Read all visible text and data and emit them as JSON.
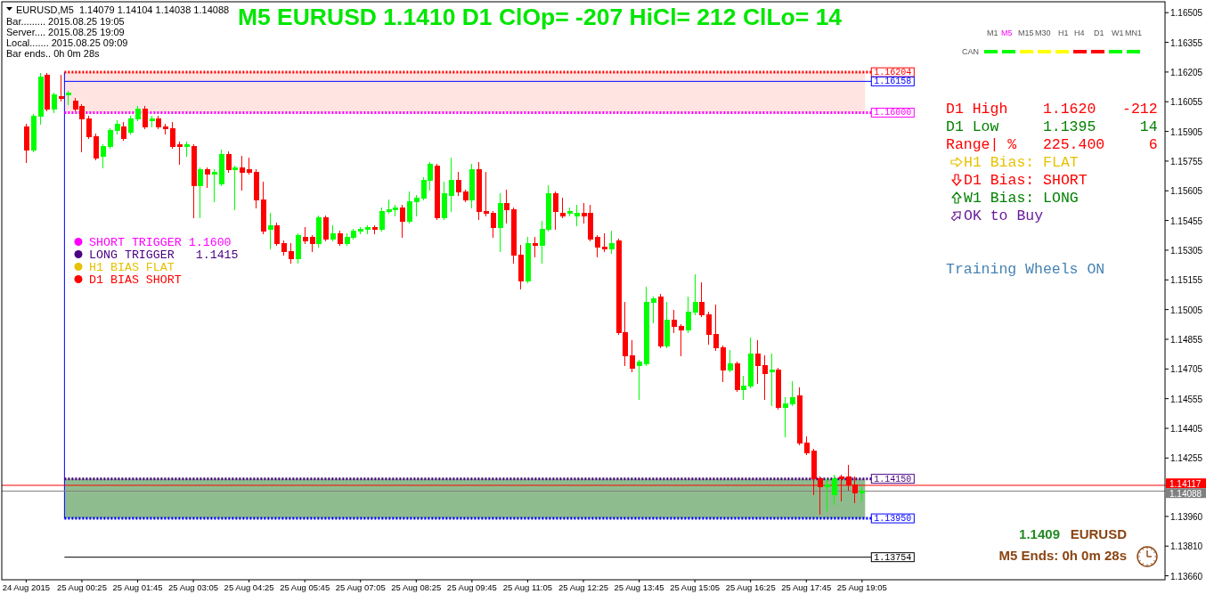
{
  "chart_data": {
    "type": "candlestick",
    "title": "M5 EURUSD 1.1410 D1 ClOp= -207 HiCl= 212 ClLo= 14",
    "x": [
      "2015-08-24T23:05",
      "2015-08-24T23:15",
      "2015-08-24T23:25",
      "2015-08-24T23:35",
      "2015-08-24T23:45",
      "2015-08-24T23:55",
      "2015-08-25T00:05",
      "2015-08-25T00:15",
      "2015-08-25T00:25",
      "2015-08-25T00:35",
      "2015-08-25T00:45",
      "2015-08-25T00:55",
      "2015-08-25T01:05",
      "2015-08-25T01:15",
      "2015-08-25T01:25",
      "2015-08-25T01:35",
      "2015-08-25T01:45",
      "2015-08-25T01:55",
      "2015-08-25T02:05",
      "2015-08-25T02:15",
      "2015-08-25T02:25",
      "2015-08-25T02:35",
      "2015-08-25T02:45",
      "2015-08-25T02:55",
      "2015-08-25T03:05",
      "2015-08-25T03:15",
      "2015-08-25T03:25",
      "2015-08-25T03:35",
      "2015-08-25T03:45",
      "2015-08-25T03:55",
      "2015-08-25T04:05",
      "2015-08-25T04:15",
      "2015-08-25T04:25",
      "2015-08-25T04:35",
      "2015-08-25T04:45",
      "2015-08-25T04:55",
      "2015-08-25T05:05",
      "2015-08-25T05:15",
      "2015-08-25T05:25",
      "2015-08-25T05:35",
      "2015-08-25T05:45",
      "2015-08-25T05:55",
      "2015-08-25T06:05",
      "2015-08-25T06:15",
      "2015-08-25T06:25",
      "2015-08-25T06:35",
      "2015-08-25T06:45",
      "2015-08-25T06:55",
      "2015-08-25T07:05",
      "2015-08-25T07:15",
      "2015-08-25T07:25",
      "2015-08-25T07:35",
      "2015-08-25T07:45",
      "2015-08-25T07:55",
      "2015-08-25T08:05",
      "2015-08-25T08:15",
      "2015-08-25T08:25",
      "2015-08-25T08:35",
      "2015-08-25T08:45",
      "2015-08-25T08:55",
      "2015-08-25T09:05",
      "2015-08-25T09:15",
      "2015-08-25T09:25",
      "2015-08-25T09:35",
      "2015-08-25T09:45",
      "2015-08-25T09:55",
      "2015-08-25T10:05",
      "2015-08-25T10:15",
      "2015-08-25T10:25",
      "2015-08-25T10:35",
      "2015-08-25T10:45",
      "2015-08-25T10:55",
      "2015-08-25T11:05",
      "2015-08-25T11:15",
      "2015-08-25T11:25",
      "2015-08-25T11:35",
      "2015-08-25T11:45",
      "2015-08-25T11:55",
      "2015-08-25T12:05",
      "2015-08-25T12:15",
      "2015-08-25T12:25",
      "2015-08-25T12:35",
      "2015-08-25T12:45",
      "2015-08-25T12:55",
      "2015-08-25T13:05",
      "2015-08-25T13:15",
      "2015-08-25T13:25",
      "2015-08-25T13:35",
      "2015-08-25T13:45",
      "2015-08-25T13:55",
      "2015-08-25T14:05",
      "2015-08-25T14:15",
      "2015-08-25T14:25",
      "2015-08-25T14:35",
      "2015-08-25T14:45",
      "2015-08-25T14:55",
      "2015-08-25T15:05",
      "2015-08-25T15:15",
      "2015-08-25T15:25",
      "2015-08-25T15:35",
      "2015-08-25T15:45",
      "2015-08-25T15:55",
      "2015-08-25T16:05",
      "2015-08-25T16:15",
      "2015-08-25T16:25",
      "2015-08-25T16:35",
      "2015-08-25T16:45",
      "2015-08-25T16:55",
      "2015-08-25T17:05",
      "2015-08-25T17:15",
      "2015-08-25T17:25",
      "2015-08-25T17:35",
      "2015-08-25T17:45",
      "2015-08-25T17:55",
      "2015-08-25T18:05",
      "2015-08-25T18:15",
      "2015-08-25T18:25",
      "2015-08-25T18:35",
      "2015-08-25T18:45",
      "2015-08-25T18:55",
      "2015-08-25T19:05"
    ],
    "ohlc": [
      [
        1.1593,
        1.1594,
        1.1575,
        1.1581
      ],
      [
        1.1581,
        1.1599,
        1.158,
        1.1598
      ],
      [
        1.1598,
        1.162,
        1.1594,
        1.1618
      ],
      [
        1.1619,
        1.162,
        1.1601,
        1.1602
      ],
      [
        1.1602,
        1.161,
        1.16,
        1.1609
      ],
      [
        1.1608,
        1.1619,
        1.1606,
        1.1607
      ],
      [
        1.1609,
        1.1611,
        1.1604,
        1.161
      ],
      [
        1.1606,
        1.1607,
        1.1601,
        1.1602
      ],
      [
        1.1603,
        1.1604,
        1.158,
        1.1597
      ],
      [
        1.1597,
        1.1598,
        1.1587,
        1.1588
      ],
      [
        1.1588,
        1.1589,
        1.1576,
        1.1577
      ],
      [
        1.1578,
        1.1584,
        1.1572,
        1.1583
      ],
      [
        1.1583,
        1.1592,
        1.1582,
        1.1591
      ],
      [
        1.1591,
        1.1596,
        1.1589,
        1.1594
      ],
      [
        1.1593,
        1.1595,
        1.1586,
        1.1587
      ],
      [
        1.159,
        1.1598,
        1.1589,
        1.1597
      ],
      [
        1.1597,
        1.1603,
        1.1596,
        1.1602
      ],
      [
        1.1602,
        1.1603,
        1.1592,
        1.1593
      ],
      [
        1.1596,
        1.1598,
        1.1593,
        1.1597
      ],
      [
        1.1597,
        1.1598,
        1.1592,
        1.1593
      ],
      [
        1.1593,
        1.1594,
        1.1589,
        1.1592
      ],
      [
        1.1592,
        1.1595,
        1.1582,
        1.1583
      ],
      [
        1.1584,
        1.1585,
        1.1574,
        1.1583
      ],
      [
        1.1583,
        1.1585,
        1.1578,
        1.1584
      ],
      [
        1.1583,
        1.1584,
        1.1547,
        1.1563
      ],
      [
        1.1563,
        1.1572,
        1.1547,
        1.1571
      ],
      [
        1.1571,
        1.1572,
        1.1562,
        1.1569
      ],
      [
        1.1569,
        1.1571,
        1.1555,
        1.157
      ],
      [
        1.1564,
        1.1581,
        1.1563,
        1.1579
      ],
      [
        1.1579,
        1.158,
        1.157,
        1.1571
      ],
      [
        1.1571,
        1.1573,
        1.1551,
        1.1572
      ],
      [
        1.1572,
        1.1578,
        1.1561,
        1.157
      ],
      [
        1.1571,
        1.1577,
        1.1569,
        1.157
      ],
      [
        1.157,
        1.1571,
        1.1552,
        1.1556
      ],
      [
        1.1556,
        1.1565,
        1.1539,
        1.154
      ],
      [
        1.1541,
        1.1549,
        1.1531,
        1.1543
      ],
      [
        1.1543,
        1.1544,
        1.1533,
        1.1534
      ],
      [
        1.1534,
        1.1535,
        1.1528,
        1.153
      ],
      [
        1.153,
        1.1534,
        1.1524,
        1.1526
      ],
      [
        1.1526,
        1.1539,
        1.1524,
        1.1538
      ],
      [
        1.1537,
        1.1542,
        1.1534,
        1.1535
      ],
      [
        1.1537,
        1.1538,
        1.153,
        1.1534
      ],
      [
        1.1534,
        1.1548,
        1.1532,
        1.1547
      ],
      [
        1.1547,
        1.1548,
        1.1535,
        1.1536
      ],
      [
        1.1536,
        1.1543,
        1.1535,
        1.1539
      ],
      [
        1.1539,
        1.154,
        1.1533,
        1.1534
      ],
      [
        1.1534,
        1.1539,
        1.1533,
        1.1537
      ],
      [
        1.1537,
        1.1541,
        1.1536,
        1.154
      ],
      [
        1.154,
        1.1542,
        1.1539,
        1.1541
      ],
      [
        1.1541,
        1.1543,
        1.1539,
        1.1542
      ],
      [
        1.1542,
        1.1543,
        1.1539,
        1.1541
      ],
      [
        1.1541,
        1.1552,
        1.154,
        1.155
      ],
      [
        1.155,
        1.1556,
        1.1549,
        1.1551
      ],
      [
        1.1551,
        1.1553,
        1.1548,
        1.1552
      ],
      [
        1.1552,
        1.1553,
        1.1537,
        1.1545
      ],
      [
        1.1545,
        1.156,
        1.1544,
        1.1555
      ],
      [
        1.1555,
        1.1558,
        1.1548,
        1.1557
      ],
      [
        1.1557,
        1.1567,
        1.1556,
        1.1566
      ],
      [
        1.1566,
        1.1575,
        1.1561,
        1.1574
      ],
      [
        1.1573,
        1.1574,
        1.1546,
        1.1547
      ],
      [
        1.1547,
        1.1565,
        1.1546,
        1.1559
      ],
      [
        1.1558,
        1.1577,
        1.155,
        1.1566
      ],
      [
        1.1566,
        1.157,
        1.1558,
        1.156
      ],
      [
        1.156,
        1.1561,
        1.1555,
        1.1556
      ],
      [
        1.1556,
        1.1574,
        1.1552,
        1.1571
      ],
      [
        1.1571,
        1.1575,
        1.1546,
        1.155
      ],
      [
        1.155,
        1.157,
        1.1548,
        1.1549
      ],
      [
        1.1549,
        1.155,
        1.1537,
        1.1542
      ],
      [
        1.1542,
        1.1559,
        1.153,
        1.1554
      ],
      [
        1.1554,
        1.1561,
        1.1544,
        1.1551
      ],
      [
        1.1551,
        1.1552,
        1.1524,
        1.1528
      ],
      [
        1.1528,
        1.1533,
        1.1511,
        1.1515
      ],
      [
        1.1515,
        1.1537,
        1.1514,
        1.1534
      ],
      [
        1.1534,
        1.1537,
        1.1527,
        1.1533
      ],
      [
        1.1533,
        1.1545,
        1.1524,
        1.1541
      ],
      [
        1.1541,
        1.1563,
        1.154,
        1.1559
      ],
      [
        1.1559,
        1.156,
        1.1541,
        1.155
      ],
      [
        1.1549,
        1.1557,
        1.1547,
        1.1548
      ],
      [
        1.1549,
        1.1552,
        1.1548,
        1.155
      ],
      [
        1.1548,
        1.1553,
        1.1543,
        1.1549
      ],
      [
        1.1549,
        1.1554,
        1.1544,
        1.1548
      ],
      [
        1.1549,
        1.1553,
        1.1535,
        1.1536
      ],
      [
        1.1537,
        1.1538,
        1.1527,
        1.1532
      ],
      [
        1.1532,
        1.1539,
        1.153,
        1.1531
      ],
      [
        1.1531,
        1.154,
        1.1529,
        1.1534
      ],
      [
        1.1535,
        1.1536,
        1.1488,
        1.1489
      ],
      [
        1.1489,
        1.1504,
        1.1472,
        1.1477
      ],
      [
        1.1477,
        1.1485,
        1.1469,
        1.1471
      ],
      [
        1.1472,
        1.1475,
        1.1455,
        1.1474
      ],
      [
        1.1473,
        1.1512,
        1.1472,
        1.1504
      ],
      [
        1.1504,
        1.1507,
        1.1494,
        1.1506
      ],
      [
        1.1507,
        1.1508,
        1.1481,
        1.1482
      ],
      [
        1.1482,
        1.1504,
        1.1481,
        1.1495
      ],
      [
        1.1495,
        1.15,
        1.1489,
        1.1492
      ],
      [
        1.1492,
        1.1493,
        1.1477,
        1.149
      ],
      [
        1.149,
        1.1507,
        1.1489,
        1.1499
      ],
      [
        1.1499,
        1.1518,
        1.1498,
        1.1504
      ],
      [
        1.1504,
        1.1514,
        1.1497,
        1.1498
      ],
      [
        1.1498,
        1.1499,
        1.1483,
        1.1488
      ],
      [
        1.1488,
        1.1503,
        1.148,
        1.1481
      ],
      [
        1.1481,
        1.1482,
        1.1464,
        1.147
      ],
      [
        1.147,
        1.148,
        1.1469,
        1.1473
      ],
      [
        1.1473,
        1.1474,
        1.1459,
        1.146
      ],
      [
        1.146,
        1.1467,
        1.1455,
        1.1462
      ],
      [
        1.1462,
        1.1486,
        1.1461,
        1.1478
      ],
      [
        1.1478,
        1.1485,
        1.1463,
        1.1472
      ],
      [
        1.1472,
        1.1477,
        1.1455,
        1.1468
      ],
      [
        1.1469,
        1.1478,
        1.1452,
        1.147
      ],
      [
        1.147,
        1.1471,
        1.145,
        1.1451
      ],
      [
        1.1451,
        1.1456,
        1.1436,
        1.1453
      ],
      [
        1.1453,
        1.1464,
        1.1452,
        1.1456
      ],
      [
        1.1457,
        1.1461,
        1.1432,
        1.1433
      ],
      [
        1.1433,
        1.1436,
        1.1427,
        1.1428
      ],
      [
        1.1429,
        1.143,
        1.1407,
        1.1415
      ],
      [
        1.1415,
        1.1416,
        1.1397,
        1.1411
      ],
      [
        1.1411,
        1.1415,
        1.1399,
        1.1412
      ],
      [
        1.1407,
        1.1417,
        1.1402,
        1.1415
      ],
      [
        1.1416,
        1.1417,
        1.1404,
        1.1415
      ],
      [
        1.1416,
        1.1422,
        1.1409,
        1.1412
      ],
      [
        1.1412,
        1.1416,
        1.1403,
        1.1408
      ],
      [
        1.14079,
        1.14104,
        1.14038,
        1.14088
      ]
    ],
    "colors": [
      "#ff0000",
      "#00ff00",
      "#00ff00",
      "#ff0000",
      "#00ff00",
      "#ff0000",
      "#00ff00",
      "#ff0000",
      "#ff0000",
      "#ff0000",
      "#ff0000",
      "#00ff00",
      "#00ff00",
      "#00ff00",
      "#ff0000",
      "#00ff00",
      "#00ff00",
      "#ff0000",
      "#00ff00",
      "#ff0000",
      "#ff0000",
      "#ff0000",
      "#ff0000",
      "#00ff00",
      "#ff0000",
      "#00ff00",
      "#ff0000",
      "#00ff00",
      "#00ff00",
      "#ff0000",
      "#00ff00",
      "#ff0000",
      "#ff0000",
      "#ff0000",
      "#ff0000",
      "#00ff00",
      "#ff0000",
      "#ff0000",
      "#ff0000",
      "#00ff00",
      "#ff0000",
      "#ff0000",
      "#00ff00",
      "#ff0000",
      "#00ff00",
      "#ff0000",
      "#00ff00",
      "#00ff00",
      "#00ff00",
      "#00ff00",
      "#ff0000",
      "#00ff00",
      "#00ff00",
      "#00ff00",
      "#ff0000",
      "#00ff00",
      "#00ff00",
      "#00ff00",
      "#00ff00",
      "#ff0000",
      "#00ff00",
      "#00ff00",
      "#ff0000",
      "#ff0000",
      "#00ff00",
      "#ff0000",
      "#ff0000",
      "#ff0000",
      "#00ff00",
      "#ff0000",
      "#ff0000",
      "#ff0000",
      "#00ff00",
      "#ff0000",
      "#00ff00",
      "#00ff00",
      "#ff0000",
      "#ff0000",
      "#00ff00",
      "#00ff00",
      "#ff0000",
      "#ff0000",
      "#ff0000",
      "#ff0000",
      "#00ff00",
      "#ff0000",
      "#ff0000",
      "#ff0000",
      "#00ff00",
      "#00ff00",
      "#00ff00",
      "#ff0000",
      "#00ff00",
      "#ff0000",
      "#ff0000",
      "#00ff00",
      "#00ff00",
      "#ff0000",
      "#ff0000",
      "#ff0000",
      "#ff0000",
      "#00ff00",
      "#ff0000",
      "#00ff00",
      "#00ff00",
      "#ff0000",
      "#ff0000",
      "#00ff00",
      "#ff0000",
      "#00ff00",
      "#00ff00",
      "#ff0000",
      "#ff0000",
      "#ff0000",
      "#ff0000",
      "#00ff00",
      "#00ff00",
      "#ff0000",
      "#ff0000",
      "#ff0000",
      "#00ff00"
    ],
    "xlim": [
      "2015-08-24T22:30",
      "2015-08-26T02:20"
    ],
    "xticks": [
      {
        "value": "2015-08-24T23:05",
        "label": "24 Aug 2015"
      },
      {
        "value": "2015-08-25T00:25",
        "label": "25 Aug 00:25"
      },
      {
        "value": "2015-08-25T01:45",
        "label": "25 Aug 01:45"
      },
      {
        "value": "2015-08-25T03:05",
        "label": "25 Aug 03:05"
      },
      {
        "value": "2015-08-25T04:25",
        "label": "25 Aug 04:25"
      },
      {
        "value": "2015-08-25T05:45",
        "label": "25 Aug 05:45"
      },
      {
        "value": "2015-08-25T07:05",
        "label": "25 Aug 07:05"
      },
      {
        "value": "2015-08-25T08:25",
        "label": "25 Aug 08:25"
      },
      {
        "value": "2015-08-25T09:45",
        "label": "25 Aug 09:45"
      },
      {
        "value": "2015-08-25T11:05",
        "label": "25 Aug 11:05"
      },
      {
        "value": "2015-08-25T12:25",
        "label": "25 Aug 12:25"
      },
      {
        "value": "2015-08-25T13:45",
        "label": "25 Aug 13:45"
      },
      {
        "value": "2015-08-25T15:05",
        "label": "25 Aug 15:05"
      },
      {
        "value": "2015-08-25T16:25",
        "label": "25 Aug 16:25"
      },
      {
        "value": "2015-08-25T17:45",
        "label": "25 Aug 17:45"
      },
      {
        "value": "2015-08-25T19:05",
        "label": "25 Aug 19:05"
      }
    ],
    "ylim": [
      1.1364,
      1.1656
    ],
    "yticks": [
      1.16505,
      1.16355,
      1.16205,
      1.16055,
      1.15905,
      1.15755,
      1.15605,
      1.15455,
      1.15305,
      1.15155,
      1.15005,
      1.14855,
      1.14705,
      1.14555,
      1.14405,
      1.14255,
      1.14117,
      1.14088,
      {
        "value": 1.1396,
        "label": "1.13960"
      },
      {
        "value": 1.1381,
        "label": "1.13810"
      },
      {
        "value": 1.1366,
        "label": "1.13660"
      }
    ],
    "ref_lines": [
      {
        "axis": "x",
        "value": "2015-08-25T00:00",
        "color": "#0000ff"
      },
      {
        "axis": "y",
        "value": 1.16204,
        "label": "1.16204",
        "color": "#ff0000",
        "line_style": "dotted"
      },
      {
        "axis": "y",
        "value": 1.16158,
        "label": "1.16158",
        "color": "#0000ff",
        "line_style": "solid"
      },
      {
        "axis": "y",
        "value": 1.16,
        "label": "1.16000",
        "color": "#ff00ff",
        "line_style": "dotted"
      },
      {
        "axis": "y",
        "value": 1.1415,
        "label": "1.14150",
        "color": "#4b0082",
        "line_style": "dotted"
      },
      {
        "axis": "y",
        "value": 1.1395,
        "label": "1.13950",
        "color": "#0000ff",
        "line_style": "dotted"
      },
      {
        "axis": "y",
        "value": 1.13754,
        "label": "1.13754",
        "color": "#000000",
        "line_style": "solid"
      },
      {
        "axis": "y",
        "value": 1.14117,
        "color": "#ff0000",
        "line_style": "solid"
      },
      {
        "axis": "y",
        "value": 1.14088,
        "color": "#808080",
        "line_style": "solid"
      }
    ],
    "bands": [
      {
        "axis": "y",
        "from": 1.16,
        "to": 1.16204,
        "color": "#ffe4e1"
      },
      {
        "axis": "y",
        "from": 1.1395,
        "to": 1.1415,
        "color": "#8fbc8f"
      }
    ],
    "annotations": [
      "EURUSD,M5  1.14079 1.14104 1.14038 1.14088",
      "Bar......... 2015.08.25 19:05",
      "Server.... 2015.08.25 19:09",
      "Local....... 2015.08.25 09:09",
      "Bar ends.. 0h 0m 28s",
      "SHORT TRIGGER 1.1600",
      "LONG TRIGGER   1.1415",
      "H1 BIAS FLAT",
      "D1 BIAS SHORT",
      "M1",
      "M5",
      "M15",
      "M30",
      "H1",
      "H4",
      "D1",
      "W1",
      "MN1",
      "CAN",
      "D1 High    1.1620   -212",
      "D1 Low     1.1395     14",
      "Range| %   225.400     6",
      "H1 Bias: FLAT",
      "D1 Bias: SHORT",
      "W1 Bias: LONG",
      "OK to Buy",
      "Training Wheels ON",
      "1.1409",
      "EURUSD",
      "M5 Ends: 0h 0m 28s"
    ]
  }
}
